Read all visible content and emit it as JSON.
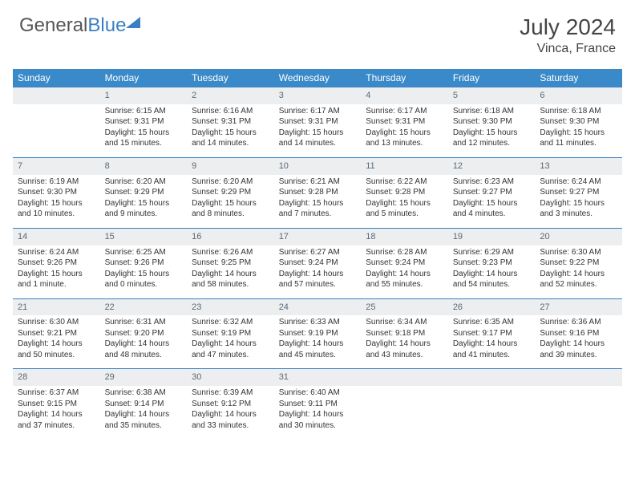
{
  "brand": {
    "part1": "General",
    "part2": "Blue"
  },
  "title": "July 2024",
  "location": "Vinca, France",
  "weekdays": [
    "Sunday",
    "Monday",
    "Tuesday",
    "Wednesday",
    "Thursday",
    "Friday",
    "Saturday"
  ],
  "colors": {
    "header_bg": "#3a8ac9",
    "header_text": "#ffffff",
    "daynum_bg": "#eceeef",
    "daynum_text": "#5a6a78",
    "rule": "#3a7fc4",
    "body_text": "#333333",
    "brand_gray": "#555555",
    "brand_blue": "#3a7fc4"
  },
  "fonts": {
    "title_pt": 28,
    "location_pt": 16,
    "weekday_pt": 12,
    "daynum_pt": 11,
    "body_pt": 10
  },
  "start_offset": 1,
  "days": [
    {
      "n": 1,
      "sunrise": "6:15 AM",
      "sunset": "9:31 PM",
      "daylight": "15 hours and 15 minutes."
    },
    {
      "n": 2,
      "sunrise": "6:16 AM",
      "sunset": "9:31 PM",
      "daylight": "15 hours and 14 minutes."
    },
    {
      "n": 3,
      "sunrise": "6:17 AM",
      "sunset": "9:31 PM",
      "daylight": "15 hours and 14 minutes."
    },
    {
      "n": 4,
      "sunrise": "6:17 AM",
      "sunset": "9:31 PM",
      "daylight": "15 hours and 13 minutes."
    },
    {
      "n": 5,
      "sunrise": "6:18 AM",
      "sunset": "9:30 PM",
      "daylight": "15 hours and 12 minutes."
    },
    {
      "n": 6,
      "sunrise": "6:18 AM",
      "sunset": "9:30 PM",
      "daylight": "15 hours and 11 minutes."
    },
    {
      "n": 7,
      "sunrise": "6:19 AM",
      "sunset": "9:30 PM",
      "daylight": "15 hours and 10 minutes."
    },
    {
      "n": 8,
      "sunrise": "6:20 AM",
      "sunset": "9:29 PM",
      "daylight": "15 hours and 9 minutes."
    },
    {
      "n": 9,
      "sunrise": "6:20 AM",
      "sunset": "9:29 PM",
      "daylight": "15 hours and 8 minutes."
    },
    {
      "n": 10,
      "sunrise": "6:21 AM",
      "sunset": "9:28 PM",
      "daylight": "15 hours and 7 minutes."
    },
    {
      "n": 11,
      "sunrise": "6:22 AM",
      "sunset": "9:28 PM",
      "daylight": "15 hours and 5 minutes."
    },
    {
      "n": 12,
      "sunrise": "6:23 AM",
      "sunset": "9:27 PM",
      "daylight": "15 hours and 4 minutes."
    },
    {
      "n": 13,
      "sunrise": "6:24 AM",
      "sunset": "9:27 PM",
      "daylight": "15 hours and 3 minutes."
    },
    {
      "n": 14,
      "sunrise": "6:24 AM",
      "sunset": "9:26 PM",
      "daylight": "15 hours and 1 minute."
    },
    {
      "n": 15,
      "sunrise": "6:25 AM",
      "sunset": "9:26 PM",
      "daylight": "15 hours and 0 minutes."
    },
    {
      "n": 16,
      "sunrise": "6:26 AM",
      "sunset": "9:25 PM",
      "daylight": "14 hours and 58 minutes."
    },
    {
      "n": 17,
      "sunrise": "6:27 AM",
      "sunset": "9:24 PM",
      "daylight": "14 hours and 57 minutes."
    },
    {
      "n": 18,
      "sunrise": "6:28 AM",
      "sunset": "9:24 PM",
      "daylight": "14 hours and 55 minutes."
    },
    {
      "n": 19,
      "sunrise": "6:29 AM",
      "sunset": "9:23 PM",
      "daylight": "14 hours and 54 minutes."
    },
    {
      "n": 20,
      "sunrise": "6:30 AM",
      "sunset": "9:22 PM",
      "daylight": "14 hours and 52 minutes."
    },
    {
      "n": 21,
      "sunrise": "6:30 AM",
      "sunset": "9:21 PM",
      "daylight": "14 hours and 50 minutes."
    },
    {
      "n": 22,
      "sunrise": "6:31 AM",
      "sunset": "9:20 PM",
      "daylight": "14 hours and 48 minutes."
    },
    {
      "n": 23,
      "sunrise": "6:32 AM",
      "sunset": "9:19 PM",
      "daylight": "14 hours and 47 minutes."
    },
    {
      "n": 24,
      "sunrise": "6:33 AM",
      "sunset": "9:19 PM",
      "daylight": "14 hours and 45 minutes."
    },
    {
      "n": 25,
      "sunrise": "6:34 AM",
      "sunset": "9:18 PM",
      "daylight": "14 hours and 43 minutes."
    },
    {
      "n": 26,
      "sunrise": "6:35 AM",
      "sunset": "9:17 PM",
      "daylight": "14 hours and 41 minutes."
    },
    {
      "n": 27,
      "sunrise": "6:36 AM",
      "sunset": "9:16 PM",
      "daylight": "14 hours and 39 minutes."
    },
    {
      "n": 28,
      "sunrise": "6:37 AM",
      "sunset": "9:15 PM",
      "daylight": "14 hours and 37 minutes."
    },
    {
      "n": 29,
      "sunrise": "6:38 AM",
      "sunset": "9:14 PM",
      "daylight": "14 hours and 35 minutes."
    },
    {
      "n": 30,
      "sunrise": "6:39 AM",
      "sunset": "9:12 PM",
      "daylight": "14 hours and 33 minutes."
    },
    {
      "n": 31,
      "sunrise": "6:40 AM",
      "sunset": "9:11 PM",
      "daylight": "14 hours and 30 minutes."
    }
  ],
  "labels": {
    "sunrise": "Sunrise:",
    "sunset": "Sunset:",
    "daylight": "Daylight:"
  }
}
